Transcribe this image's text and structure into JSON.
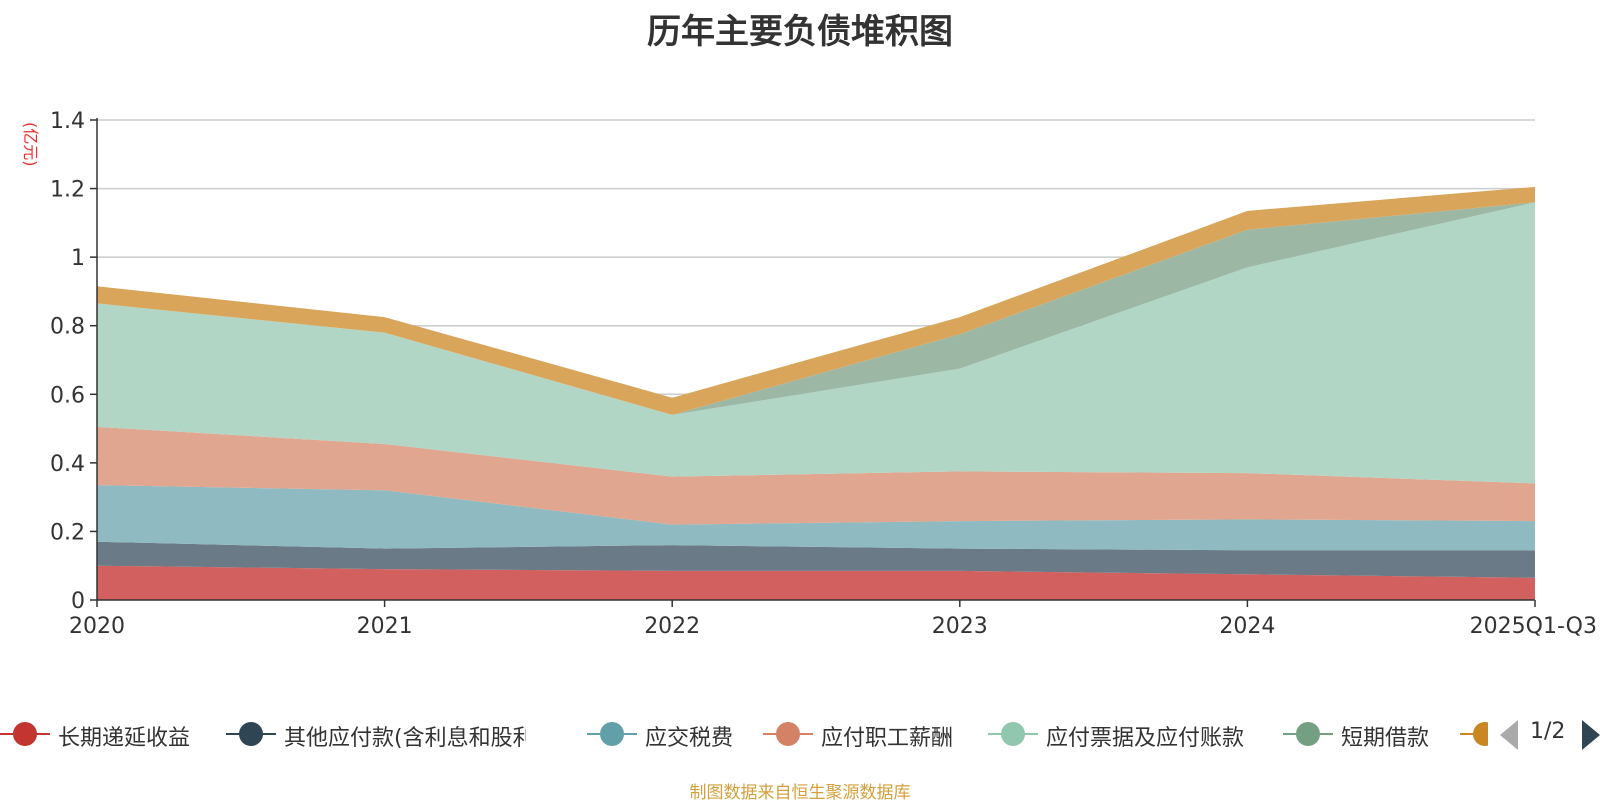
{
  "chart_data": {
    "type": "area",
    "stacked": true,
    "title": "历年主要负债堆积图",
    "ylabel": "(亿元)",
    "xlabel": "",
    "categories": [
      "2020",
      "2021",
      "2022",
      "2023",
      "2024",
      "2025Q1-Q3"
    ],
    "ylim": [
      0,
      1.4
    ],
    "yticks": [
      "0",
      "0.2",
      "0.4",
      "0.6",
      "0.8",
      "1",
      "1.2",
      "1.4"
    ],
    "grid": true,
    "legend_position": "bottom",
    "series": [
      {
        "name": "长期递延收益",
        "color": "#d2605e",
        "legend_color": "#c23531",
        "values": [
          0.1,
          0.09,
          0.085,
          0.085,
          0.075,
          0.065
        ]
      },
      {
        "name": "其他应付款(含利息和股利)",
        "color": "#6b7a87",
        "legend_color": "#2f4554",
        "values": [
          0.07,
          0.06,
          0.075,
          0.065,
          0.07,
          0.08
        ]
      },
      {
        "name": "应交税费",
        "color": "#8fbac2",
        "legend_color": "#61a0a8",
        "values": [
          0.165,
          0.17,
          0.06,
          0.08,
          0.09,
          0.085
        ]
      },
      {
        "name": "应付职工薪酬",
        "color": "#e0a690",
        "legend_color": "#d48265",
        "values": [
          0.17,
          0.135,
          0.14,
          0.145,
          0.135,
          0.11
        ]
      },
      {
        "name": "应付票据及应付账款",
        "color": "#b1d6c5",
        "legend_color": "#91c7ae",
        "values": [
          0.36,
          0.325,
          0.18,
          0.3,
          0.6,
          0.82
        ]
      },
      {
        "name": "短期借款",
        "color": "#9cb8a5",
        "legend_color": "#749f83",
        "values": [
          0,
          0,
          0,
          0.1,
          0.11,
          0
        ]
      },
      {
        "name": "",
        "color": "#d9a55a",
        "legend_color": "#ca8622",
        "values": [
          0.05,
          0.045,
          0.05,
          0.05,
          0.055,
          0.045
        ]
      }
    ]
  },
  "legend": {
    "page_label": "1/2"
  },
  "footer": {
    "source": "制图数据来自恒生聚源数据库"
  }
}
